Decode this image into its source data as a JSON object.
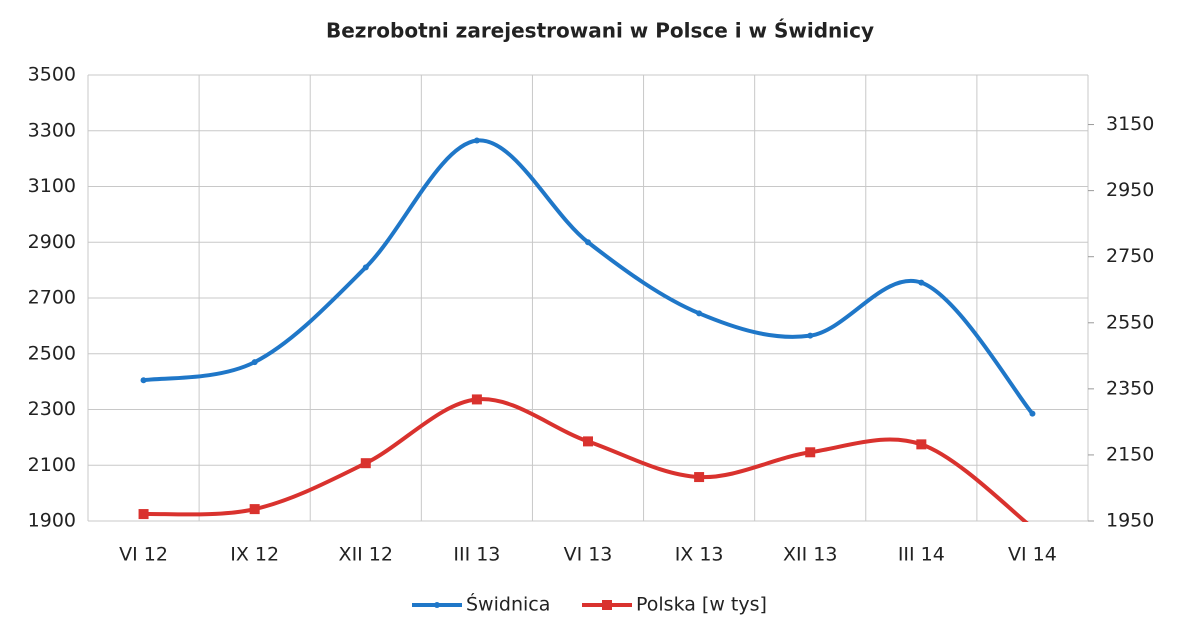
{
  "chart_data": {
    "type": "line",
    "title": "Bezrobotni zarejestrowani w Polsce i w Świdnicy",
    "categories": [
      "VI 12",
      "IX 12",
      "XII 12",
      "III 13",
      "VI 13",
      "IX 13",
      "XII 13",
      "III 14",
      "VI 14"
    ],
    "series": [
      {
        "name": "Świdnica",
        "color": "#1f77c8",
        "values": [
          2405,
          2470,
          2810,
          3265,
          2900,
          2645,
          2565,
          2755,
          2285
        ]
      },
      {
        "name": "Polska [w tys]",
        "color": "#d9322e",
        "axis": "y2",
        "values": [
          1971,
          1986,
          2125,
          2318,
          2191,
          2083,
          2158,
          2182,
          1930
        ]
      }
    ],
    "ylim": [
      1900,
      3500
    ],
    "yticks": [
      1900,
      2100,
      2300,
      2500,
      2700,
      2900,
      3100,
      3300,
      3500
    ],
    "y2lim": [
      1950,
      3300
    ],
    "y2ticks": [
      1950,
      2150,
      2350,
      2550,
      2750,
      2950,
      3150
    ],
    "grid": true,
    "legend": "bottom",
    "smooth": true
  }
}
